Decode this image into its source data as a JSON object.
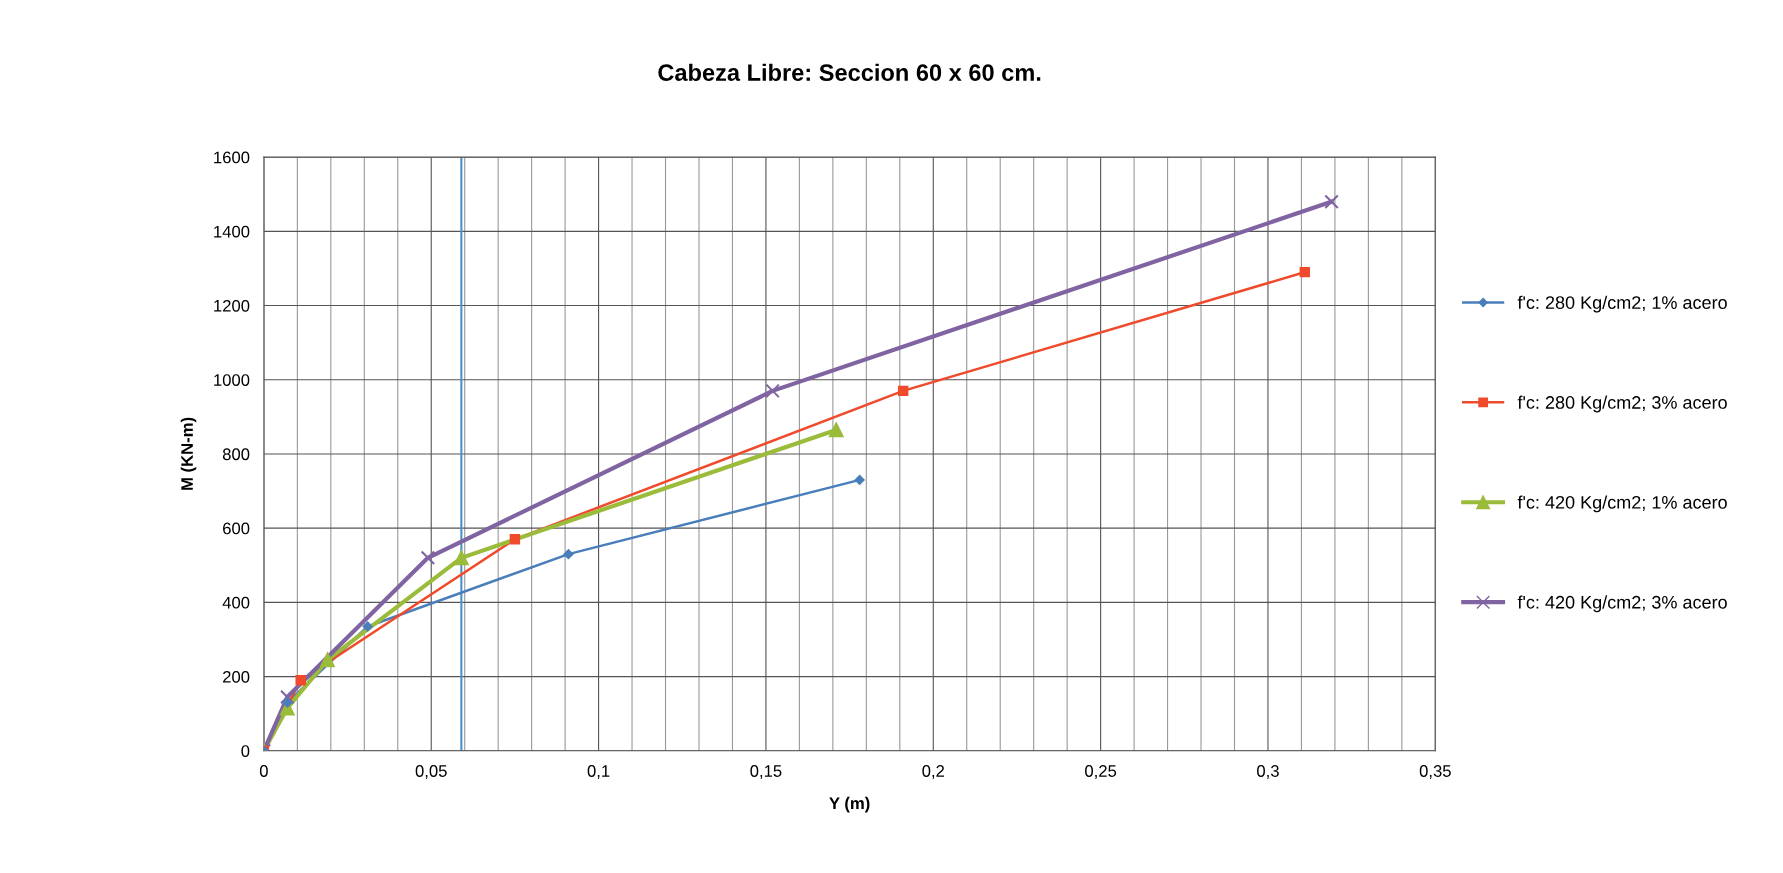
{
  "chart_data": {
    "type": "line",
    "title": "Cabeza Libre: Seccion 60 x 60 cm.",
    "xlabel": "Y (m)",
    "ylabel": "M (KN-m)",
    "series": [
      {
        "name": "f'c: 280 Kg/cm2; 1% acero",
        "color": "#4a7ebb",
        "marker": "diamond",
        "x": [
          0,
          0.007,
          0.031,
          0.091,
          0.178
        ],
        "values": [
          0,
          130,
          335,
          530,
          730
        ]
      },
      {
        "name": "f'c: 280 Kg/cm2; 3% acero",
        "color": "#f04a2c",
        "marker": "square",
        "x": [
          0,
          0.011,
          0.075,
          0.191,
          0.311
        ],
        "values": [
          0,
          190,
          570,
          970,
          1290
        ]
      },
      {
        "name": "f'c: 420 Kg/cm2; 1% acero",
        "color": "#9bbb3a",
        "marker": "triangle",
        "x": [
          0,
          0.007,
          0.019,
          0.059,
          0.171
        ],
        "values": [
          0,
          115,
          245,
          520,
          865
        ]
      },
      {
        "name": "f'c: 420 Kg/cm2; 3% acero",
        "color": "#8064a2",
        "marker": "cross",
        "x": [
          0,
          0.007,
          0.049,
          0.152,
          0.319
        ],
        "values": [
          0,
          145,
          520,
          970,
          1480
        ]
      }
    ],
    "xlim": [
      0,
      0.35
    ],
    "xticks": [
      0,
      {
        "value": 0.01,
        "label": null
      },
      {
        "value": 0.02,
        "label": null
      },
      {
        "value": 0.03,
        "label": null
      },
      {
        "value": 0.04,
        "label": null
      },
      {
        "value": 0.05,
        "label": "0,05"
      },
      {
        "value": 0.06,
        "label": null
      },
      {
        "value": 0.07,
        "label": null
      },
      {
        "value": 0.08,
        "label": null
      },
      {
        "value": 0.09,
        "label": null
      },
      {
        "value": 0.1,
        "label": "0,1"
      },
      {
        "value": 0.11,
        "label": null
      },
      {
        "value": 0.12,
        "label": null
      },
      {
        "value": 0.13,
        "label": null
      },
      {
        "value": 0.14,
        "label": null
      },
      {
        "value": 0.15,
        "label": "0,15"
      },
      {
        "value": 0.16,
        "label": null
      },
      {
        "value": 0.17,
        "label": null
      },
      {
        "value": 0.18,
        "label": null
      },
      {
        "value": 0.19,
        "label": null
      },
      {
        "value": 0.2,
        "label": "0,2"
      },
      {
        "value": 0.21,
        "label": null
      },
      {
        "value": 0.22,
        "label": null
      },
      {
        "value": 0.23,
        "label": null
      },
      {
        "value": 0.24,
        "label": null
      },
      {
        "value": 0.25,
        "label": "0,25"
      },
      {
        "value": 0.26,
        "label": null
      },
      {
        "value": 0.27,
        "label": null
      },
      {
        "value": 0.28,
        "label": null
      },
      {
        "value": 0.29,
        "label": null
      },
      {
        "value": 0.3,
        "label": "0,3"
      },
      {
        "value": 0.31,
        "label": null
      },
      {
        "value": 0.32,
        "label": null
      },
      {
        "value": 0.33,
        "label": null
      },
      {
        "value": 0.34,
        "label": null
      },
      {
        "value": 0.35,
        "label": "0,35"
      }
    ],
    "ylim": [
      0,
      1600
    ],
    "yticks": [
      0,
      200,
      400,
      600,
      800,
      1000,
      1200,
      1400,
      1600
    ],
    "ref_lines": [
      {
        "axis": "x",
        "value": 0.059,
        "color": "#4a90c8"
      }
    ],
    "grid": true,
    "legend": "right"
  }
}
